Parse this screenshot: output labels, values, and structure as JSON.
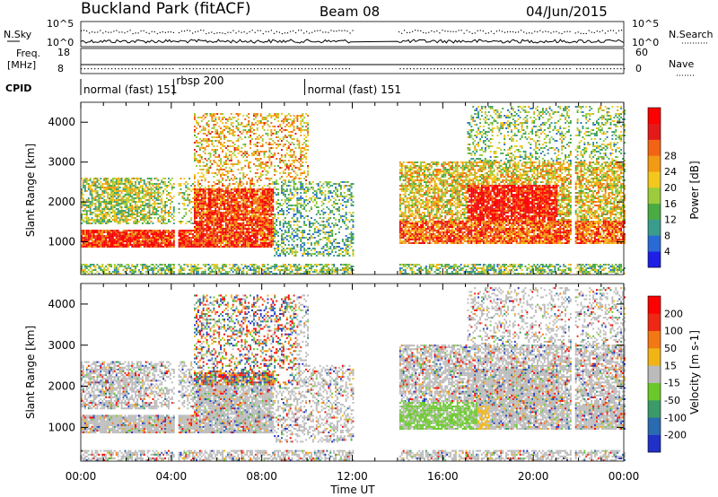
{
  "header": {
    "station": "Buckland Park (fitACF)",
    "beam": "Beam 08",
    "date": "04/Jun/2015"
  },
  "strips": {
    "nsky_label": "N.Sky",
    "nsearch_label": "N.Search",
    "freq_label": "Freq.",
    "freq_unit": "[MHz]",
    "nave_label": "Nave",
    "cpid_label": "CPID",
    "nsky_ticks": [
      "10^5",
      "10^0"
    ],
    "nsearch_ticks": [
      "10^5",
      "10^0"
    ],
    "freq_ticks": [
      "18",
      "8"
    ],
    "nave_ticks": [
      "60",
      "0"
    ],
    "cpid_segments": [
      {
        "label": "normal (fast)  151",
        "start_h": 0.0,
        "end_h": 4.1
      },
      {
        "label": "rbsp  200",
        "start_h": 4.1,
        "end_h": 9.9
      },
      {
        "label": "normal (fast)  151",
        "start_h": 9.9,
        "end_h": 24.0
      }
    ]
  },
  "chart_data": [
    {
      "type": "heatmap",
      "title": "",
      "xlabel": "Time UT",
      "ylabel": "Slant Range [km]",
      "xlim": [
        0,
        24
      ],
      "ylim": [
        180,
        4500
      ],
      "x_ticks": [
        "00:00",
        "04:00",
        "08:00",
        "12:00",
        "16:00",
        "20:00",
        "00:00"
      ],
      "y_ticks": [
        "1000",
        "2000",
        "3000",
        "4000"
      ],
      "data_gaps": [
        [
          12.0,
          14.0
        ],
        [
          4.1,
          4.25
        ]
      ],
      "colorbar": {
        "label": "Power [dB]",
        "ticks": [
          "4",
          "8",
          "12",
          "16",
          "20",
          "24",
          "28"
        ],
        "colors": [
          "#1e1ee6",
          "#2a6ad6",
          "#3a9c8c",
          "#4aaa44",
          "#9ccc3c",
          "#f2c81e",
          "#f29a14",
          "#f26414",
          "#e41a1a",
          "#ff0000"
        ]
      }
    },
    {
      "type": "heatmap",
      "title": "",
      "xlabel": "Time UT",
      "ylabel": "Slant Range [km]",
      "xlim": [
        0,
        24
      ],
      "ylim": [
        180,
        4500
      ],
      "x_ticks": [
        "00:00",
        "04:00",
        "08:00",
        "12:00",
        "16:00",
        "20:00",
        "00:00"
      ],
      "y_ticks": [
        "1000",
        "2000",
        "3000",
        "4000"
      ],
      "data_gaps": [
        [
          12.0,
          14.0
        ],
        [
          4.1,
          4.25
        ]
      ],
      "colorbar": {
        "label": "Velocity [m s-1]",
        "ticks": [
          "200",
          "100",
          "50",
          "15",
          "-15",
          "-50",
          "-100",
          "-200"
        ],
        "colors": [
          "#2030c8",
          "#2a6ab0",
          "#3a9a6a",
          "#6ac82a",
          "#bbbbbb",
          "#f0b414",
          "#f27814",
          "#ee2814",
          "#ff0000"
        ]
      }
    }
  ]
}
